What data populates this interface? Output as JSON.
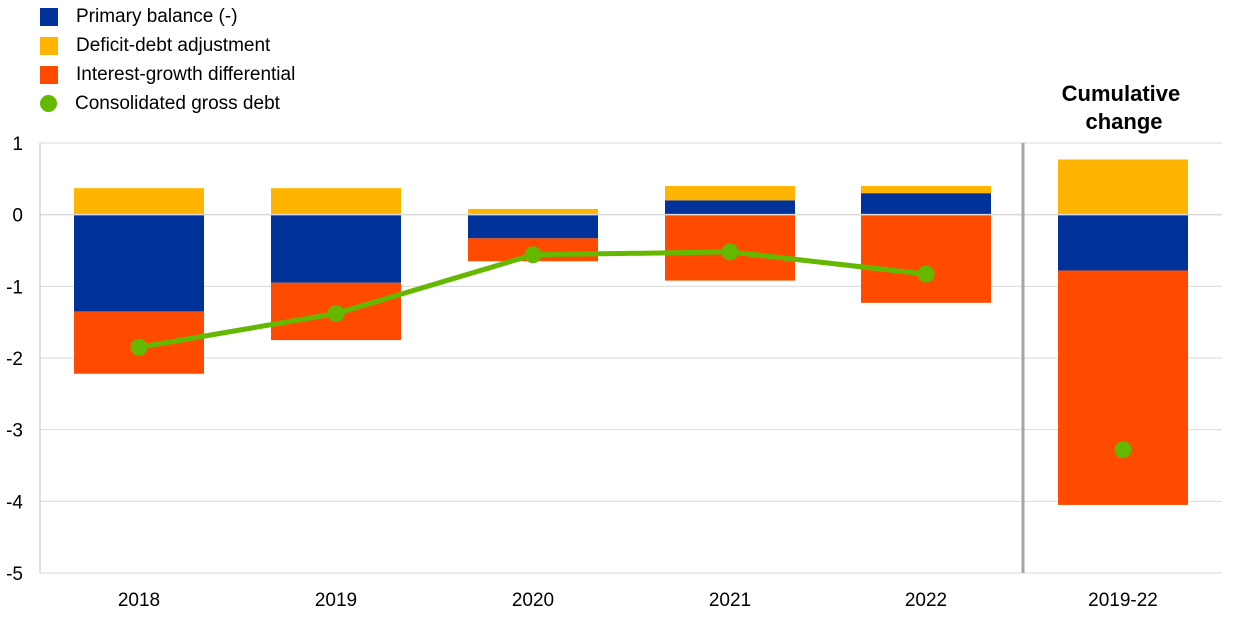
{
  "chart_data": {
    "type": "bar",
    "stacked": true,
    "categories": [
      "2018",
      "2019",
      "2020",
      "2021",
      "2022",
      "2019-22"
    ],
    "panel_title": [
      "Cumulative",
      "change"
    ],
    "ylim": [
      -5,
      1
    ],
    "yticks": [
      "1",
      "0",
      "-1",
      "-2",
      "-3",
      "-4",
      "-5"
    ],
    "grid": true,
    "legend_position": "top-left",
    "series": [
      {
        "name": "Primary balance (-)",
        "color": "#003299",
        "kind": "bar",
        "values": [
          -1.35,
          -0.95,
          -0.33,
          0.2,
          0.3,
          -0.78
        ]
      },
      {
        "name": "Deficit-debt adjustment",
        "color": "#FFB400",
        "kind": "bar",
        "values": [
          0.37,
          0.37,
          0.08,
          0.2,
          0.1,
          0.77
        ]
      },
      {
        "name": "Interest-growth differential",
        "color": "#FF4B00",
        "kind": "bar",
        "values": [
          -0.87,
          -0.8,
          -0.32,
          -0.92,
          -1.23,
          -3.27
        ]
      },
      {
        "name": "Consolidated gross debt",
        "color": "#65B800",
        "kind": "line",
        "values": [
          -1.85,
          -1.38,
          -0.56,
          -0.52,
          -0.83,
          -3.28
        ]
      }
    ]
  }
}
